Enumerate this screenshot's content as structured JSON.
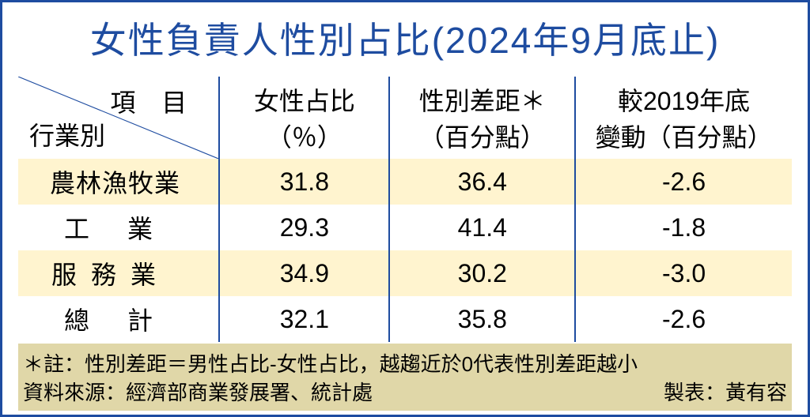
{
  "colors": {
    "frame_outer": "#c8102e",
    "frame_inner": "#1e4ca0",
    "title_color": "#1e4ca0",
    "underline": "#f5b700",
    "row_stripe": "#fff4cf",
    "footer_bg": "#e0d7a8",
    "diag_line": "#1e4ca0",
    "col_border": "#1e4ca0"
  },
  "title": "女性負責人性別占比(2024年9月底止)",
  "header": {
    "diag_top": "項 目",
    "diag_bottom": "行業別",
    "col1_line1": "女性占比",
    "col1_line2": "（％）",
    "col2_line1": "性別差距＊",
    "col2_line2": "（百分點）",
    "col3_line1": "較2019年底",
    "col3_line2": "變動（百分點）"
  },
  "rows": [
    {
      "label": "農林漁牧業",
      "cls": "spaced-5",
      "c1": "31.8",
      "c2": "36.4",
      "c3": "-2.6"
    },
    {
      "label": "工業",
      "cls": "spaced-2",
      "c1": "29.3",
      "c2": "41.4",
      "c3": "-1.8"
    },
    {
      "label": "服務業",
      "cls": "spaced-3",
      "c1": "34.9",
      "c2": "30.2",
      "c3": "-3.0"
    },
    {
      "label": "總計",
      "cls": "spaced-2",
      "c1": "32.1",
      "c2": "35.8",
      "c3": "-2.6"
    }
  ],
  "footer": {
    "note": "＊註：性別差距＝男性占比-女性占比，越趨近於0代表性別差距越小",
    "source": "資料來源：經濟部商業發展署、統計處",
    "credit": "製表：黃有容"
  }
}
